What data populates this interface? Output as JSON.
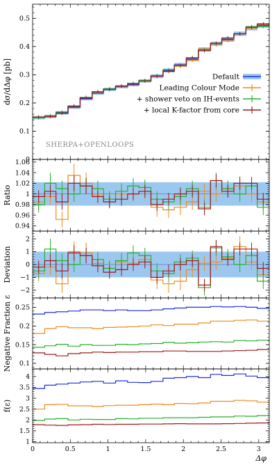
{
  "chart_data": {
    "type": "line",
    "xlabel": "Δφ",
    "x_ticks": [
      "0",
      "0.5",
      "1",
      "1.5",
      "2",
      "2.5",
      "3"
    ],
    "watermark": "SHERPA+OPENLOOPS",
    "colors": {
      "default": "#1f2ee0",
      "band": "#9cc8f0",
      "lcm": "#f08a1a",
      "veto": "#22b22a",
      "kfac": "#a0181c"
    },
    "legend": {
      "placement": "right",
      "entries": [
        "Default",
        "Leading Colour Mode",
        "+ shower veto on IH-events",
        "+ local K-factor from core"
      ]
    },
    "bin_edges": [
      0.0,
      0.16,
      0.31,
      0.47,
      0.63,
      0.79,
      0.94,
      1.1,
      1.26,
      1.41,
      1.57,
      1.73,
      1.88,
      2.04,
      2.2,
      2.36,
      2.51,
      2.67,
      2.83,
      2.98,
      3.14
    ],
    "panels": [
      {
        "ylabel": "dσ/dΔφ [pb]",
        "yticks": [
          0,
          0.1,
          0.2,
          0.3,
          0.4,
          0.5
        ],
        "yticklabels": [
          "0",
          "0.1",
          "0.2",
          "0.3",
          "0.4",
          "0.5"
        ],
        "ylim": [
          0,
          0.55
        ],
        "band": [
          0.006,
          0.006,
          0.006,
          0.006,
          0.006,
          0.006,
          0.006,
          0.006,
          0.006,
          0.006,
          0.007,
          0.007,
          0.007,
          0.007,
          0.007,
          0.007,
          0.008,
          0.008,
          0.008,
          0.008
        ],
        "series": [
          {
            "name": "Default",
            "style": "band",
            "values": [
              0.148,
              0.152,
              0.165,
              0.185,
              0.215,
              0.235,
              0.248,
              0.258,
              0.265,
              0.278,
              0.295,
              0.315,
              0.335,
              0.355,
              0.39,
              0.41,
              0.425,
              0.445,
              0.465,
              0.475
            ]
          },
          {
            "name": "Leading Colour Mode",
            "style": "cross",
            "values": [
              0.15,
              0.153,
              0.168,
              0.188,
              0.22,
              0.238,
              0.25,
              0.259,
              0.268,
              0.28,
              0.295,
              0.312,
              0.33,
              0.35,
              0.392,
              0.405,
              0.42,
              0.445,
              0.465,
              0.478
            ]
          },
          {
            "name": "+ shower veto on IH-events",
            "style": "cross",
            "values": [
              0.147,
              0.155,
              0.168,
              0.19,
              0.22,
              0.24,
              0.25,
              0.26,
              0.27,
              0.28,
              0.297,
              0.318,
              0.334,
              0.36,
              0.388,
              0.41,
              0.43,
              0.445,
              0.47,
              0.47
            ]
          },
          {
            "name": "+ local K-factor from core",
            "style": "cross",
            "values": [
              0.15,
              0.152,
              0.163,
              0.188,
              0.218,
              0.24,
              0.248,
              0.26,
              0.267,
              0.278,
              0.295,
              0.312,
              0.333,
              0.36,
              0.385,
              0.412,
              0.43,
              0.445,
              0.468,
              0.48
            ]
          }
        ]
      },
      {
        "ylabel": "Ratio",
        "yticks": [
          0.94,
          0.96,
          0.98,
          1.0,
          1.02,
          1.04,
          1.06
        ],
        "yticklabels": [
          "0.94",
          "0.96",
          "0.98",
          "1",
          "1.02",
          "1.04",
          "1.06"
        ],
        "ylim": [
          0.93,
          1.065
        ],
        "refline": 1.0,
        "band": [
          0.022,
          0.022,
          0.022,
          0.022,
          0.022,
          0.022,
          0.022,
          0.022,
          0.022,
          0.022,
          0.022,
          0.022,
          0.022,
          0.022,
          0.022,
          0.022,
          0.022,
          0.022,
          0.022,
          0.022
        ],
        "series": [
          {
            "name": "Leading Colour Mode",
            "values": [
              0.985,
              0.995,
              0.952,
              1.035,
              1.02,
              1.0,
              0.99,
              1.0,
              1.0,
              1.005,
              0.975,
              0.97,
              0.975,
              0.985,
              1.005,
              1.0,
              1.01,
              1.015,
              1.0,
              0.985
            ],
            "err": [
              0.015,
              0.015,
              0.015,
              0.022,
              0.02,
              0.015,
              0.015,
              0.015,
              0.015,
              0.015,
              0.018,
              0.015,
              0.015,
              0.015,
              0.015,
              0.015,
              0.015,
              0.018,
              0.015,
              0.015
            ]
          },
          {
            "name": "+ shower veto on IH-events",
            "values": [
              0.98,
              1.02,
              1.01,
              1.0,
              1.015,
              1.01,
              0.99,
              1.005,
              1.015,
              1.012,
              0.99,
              0.985,
              0.995,
              1.01,
              0.975,
              1.025,
              1.01,
              1.0,
              1.015,
              0.975
            ],
            "err": [
              0.015,
              0.02,
              0.015,
              0.015,
              0.015,
              0.015,
              0.015,
              0.015,
              0.015,
              0.015,
              0.015,
              0.015,
              0.015,
              0.015,
              0.015,
              0.015,
              0.015,
              0.015,
              0.015,
              0.015
            ]
          },
          {
            "name": "+ local K-factor from core",
            "values": [
              0.995,
              1.005,
              0.985,
              1.02,
              1.015,
              0.995,
              0.985,
              0.99,
              1.0,
              1.005,
              0.98,
              0.99,
              1.0,
              1.005,
              0.972,
              1.025,
              1.005,
              1.02,
              1.02,
              0.99
            ],
            "err": [
              0.012,
              0.012,
              0.015,
              0.015,
              0.015,
              0.012,
              0.012,
              0.012,
              0.012,
              0.012,
              0.012,
              0.012,
              0.012,
              0.012,
              0.012,
              0.012,
              0.012,
              0.012,
              0.012,
              0.012
            ]
          }
        ]
      },
      {
        "ylabel": "Deviation",
        "yticks": [
          -2,
          -1,
          0,
          1,
          2
        ],
        "yticklabels": [
          "−2",
          "−1",
          "0",
          "1",
          "2"
        ],
        "ylim": [
          -2.6,
          2.6
        ],
        "refline": 0,
        "band": [
          1,
          1,
          1,
          1,
          1,
          1,
          1,
          1,
          1,
          1,
          1,
          1,
          1,
          1,
          1,
          1,
          1,
          1,
          1,
          1
        ],
        "series": [
          {
            "name": "Leading Colour Mode",
            "values": [
              -0.7,
              -0.2,
              -1.5,
              1.0,
              0.9,
              0.1,
              -0.3,
              0.2,
              0.1,
              0.4,
              -1.2,
              -1.5,
              -1.3,
              -0.4,
              0.1,
              0.2,
              0.5,
              1.4,
              0.2,
              -0.8
            ],
            "err": [
              0.6,
              0.6,
              0.7,
              0.8,
              0.8,
              0.7,
              0.6,
              0.6,
              0.6,
              0.6,
              0.7,
              0.7,
              0.7,
              0.6,
              0.6,
              0.6,
              0.6,
              0.8,
              0.6,
              0.6
            ]
          },
          {
            "name": "+ shower veto on IH-events",
            "values": [
              -0.5,
              1.2,
              0.3,
              0.0,
              0.7,
              0.4,
              -0.3,
              0.3,
              0.9,
              0.7,
              -0.5,
              -0.7,
              0.2,
              0.5,
              -1.8,
              1.3,
              0.6,
              0.0,
              0.7,
              -1.3
            ],
            "err": [
              0.6,
              0.8,
              0.6,
              0.6,
              0.6,
              0.6,
              0.6,
              0.6,
              0.6,
              0.6,
              0.6,
              0.6,
              0.6,
              0.6,
              0.6,
              0.6,
              0.6,
              0.6,
              0.6,
              0.6
            ]
          },
          {
            "name": "+ local K-factor from core",
            "values": [
              -0.2,
              0.3,
              -0.5,
              0.9,
              0.7,
              -0.1,
              -0.6,
              -0.4,
              0.0,
              0.2,
              -1.0,
              -0.5,
              0.0,
              0.3,
              -1.6,
              1.4,
              0.4,
              1.2,
              1.2,
              -0.3
            ],
            "err": [
              0.5,
              0.5,
              0.6,
              0.6,
              0.6,
              0.5,
              0.5,
              0.5,
              0.5,
              0.5,
              0.5,
              0.5,
              0.5,
              0.5,
              0.5,
              0.5,
              0.5,
              0.5,
              0.5,
              0.5
            ]
          }
        ]
      },
      {
        "ylabel": "Negative Fraction ε",
        "yticks": [
          0.1,
          0.15,
          0.2,
          0.25
        ],
        "yticklabels": [
          "0.1",
          "0.15",
          "0.2",
          "0.25"
        ],
        "ylim": [
          0.085,
          0.275
        ],
        "series": [
          {
            "name": "Default",
            "values": [
              0.232,
              0.236,
              0.238,
              0.24,
              0.243,
              0.243,
              0.241,
              0.243,
              0.241,
              0.241,
              0.243,
              0.246,
              0.248,
              0.25,
              0.25,
              0.252,
              0.251,
              0.252,
              0.25,
              0.247
            ]
          },
          {
            "name": "Leading Colour Mode",
            "values": [
              0.18,
              0.193,
              0.198,
              0.195,
              0.195,
              0.193,
              0.196,
              0.197,
              0.198,
              0.2,
              0.203,
              0.201,
              0.205,
              0.205,
              0.208,
              0.213,
              0.213,
              0.215,
              0.216,
              0.213
            ]
          },
          {
            "name": "+ shower veto on IH-events",
            "values": [
              0.143,
              0.147,
              0.151,
              0.146,
              0.15,
              0.148,
              0.148,
              0.151,
              0.15,
              0.152,
              0.153,
              0.156,
              0.154,
              0.155,
              0.157,
              0.158,
              0.157,
              0.161,
              0.16,
              0.162
            ]
          },
          {
            "name": "+ local K-factor from core",
            "values": [
              0.128,
              0.124,
              0.12,
              0.126,
              0.128,
              0.13,
              0.129,
              0.13,
              0.13,
              0.131,
              0.131,
              0.133,
              0.133,
              0.132,
              0.132,
              0.132,
              0.133,
              0.134,
              0.135,
              0.137
            ]
          }
        ]
      },
      {
        "ylabel": "f(ε)",
        "yticks": [
          1,
          1.5,
          2,
          2.5,
          3,
          3.5,
          4
        ],
        "yticklabels": [
          "1",
          "1.5",
          "2",
          "2.5",
          "3",
          "3.5",
          "4"
        ],
        "ylim": [
          0.95,
          4.35
        ],
        "series": [
          {
            "name": "Default",
            "values": [
              3.45,
              3.6,
              3.65,
              3.7,
              3.75,
              3.78,
              3.7,
              3.8,
              3.73,
              3.72,
              3.78,
              3.92,
              3.95,
              4.0,
              3.95,
              4.1,
              4.05,
              4.12,
              4.02,
              3.95
            ]
          },
          {
            "name": "Leading Colour Mode",
            "values": [
              2.5,
              2.7,
              2.72,
              2.65,
              2.65,
              2.62,
              2.66,
              2.68,
              2.68,
              2.7,
              2.73,
              2.7,
              2.76,
              2.75,
              2.78,
              2.86,
              2.86,
              2.9,
              2.88,
              2.82
            ]
          },
          {
            "name": "+ shower veto on IH-events",
            "values": [
              1.98,
              2.04,
              2.06,
              2.0,
              2.03,
              2.02,
              2.02,
              2.06,
              2.05,
              2.08,
              2.08,
              2.1,
              2.1,
              2.1,
              2.12,
              2.14,
              2.14,
              2.18,
              2.17,
              2.2
            ]
          },
          {
            "name": "+ local K-factor from core",
            "values": [
              1.78,
              1.76,
              1.75,
              1.77,
              1.78,
              1.8,
              1.79,
              1.8,
              1.8,
              1.81,
              1.81,
              1.82,
              1.83,
              1.82,
              1.82,
              1.82,
              1.83,
              1.84,
              1.85,
              1.86
            ]
          }
        ]
      }
    ]
  }
}
